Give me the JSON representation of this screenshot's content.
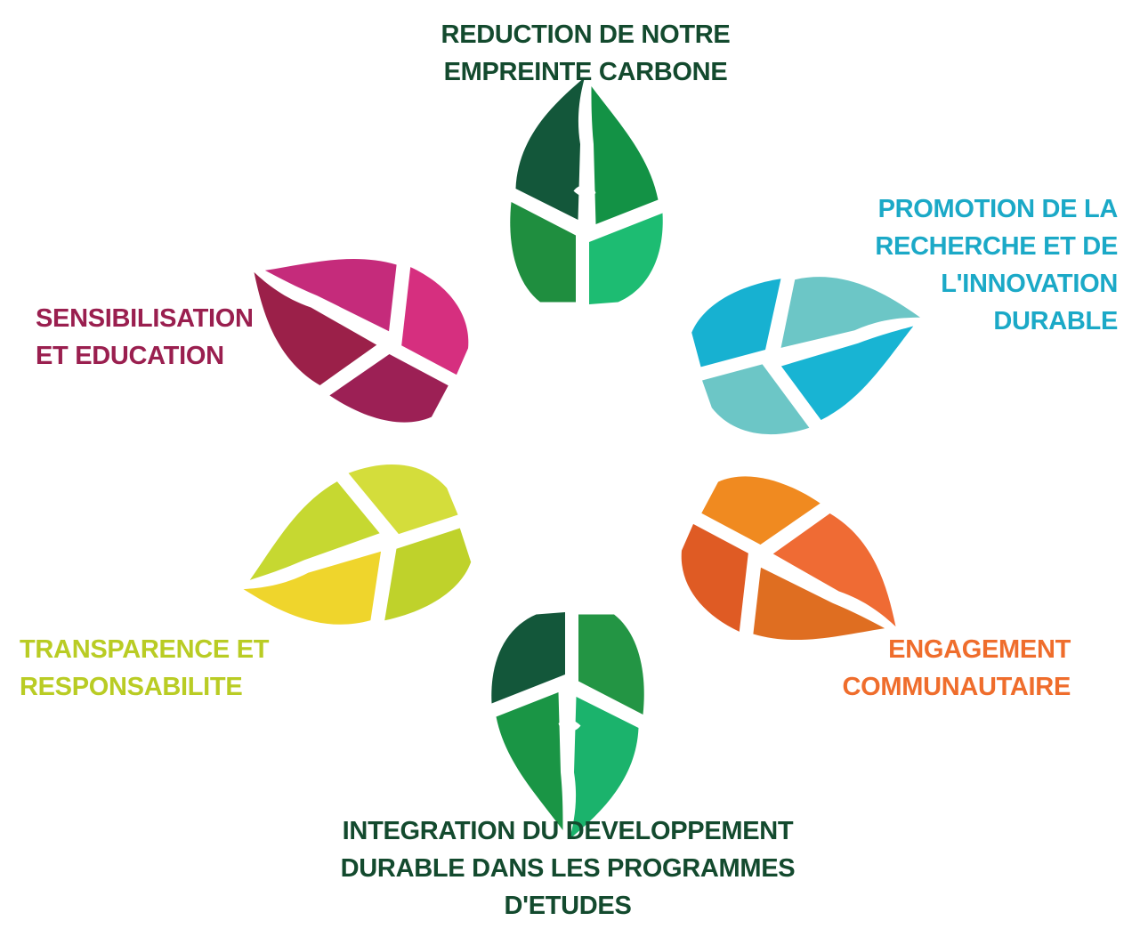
{
  "diagram": {
    "title_hidden": "",
    "petals": [
      {
        "id": "top",
        "lines": [
          "REDUCTION DE NOTRE",
          "EMPREINTE CARBONE"
        ],
        "text_color": "#134a2e",
        "colors": [
          "#13573a",
          "#139245",
          "#1f8e3f",
          "#1dbc72"
        ]
      },
      {
        "id": "right",
        "lines": [
          "PROMOTION DE LA",
          "RECHERCHE ET DE",
          "L'INNOVATION",
          "DURABLE"
        ],
        "text_color": "#1ba9c7",
        "colors": [
          "#6cc6c6",
          "#18b4d3",
          "#17b1d1",
          "#6cc6c6"
        ]
      },
      {
        "id": "left",
        "lines": [
          "SENSIBILISATION",
          "ET EDUCATION"
        ],
        "text_color": "#9a1f4f",
        "colors": [
          "#9b2049",
          "#c52b7b",
          "#9c2055",
          "#d62f7f"
        ]
      },
      {
        "id": "bottom-left",
        "lines": [
          "TRANSPARENCE ET",
          "RESPONSABILITE"
        ],
        "text_color": "#b9cc24",
        "colors": [
          "#efd52c",
          "#c6d831",
          "#bfd22b",
          "#d4dd3b"
        ]
      },
      {
        "id": "bottom-right",
        "lines": [
          "ENGAGEMENT",
          "COMMUNAUTAIRE"
        ],
        "text_color": "#ef6d2c",
        "colors": [
          "#ef6b34",
          "#df6e21",
          "#f08a20",
          "#df5b24"
        ]
      },
      {
        "id": "bottom",
        "lines": [
          "INTEGRATION DU DEVELOPPEMENT",
          "DURABLE DANS LES PROGRAMMES",
          "D'ETUDES"
        ],
        "text_color": "#134a2e",
        "colors": [
          "#1bb36c",
          "#1a9545",
          "#239544",
          "#13573a"
        ]
      }
    ]
  }
}
